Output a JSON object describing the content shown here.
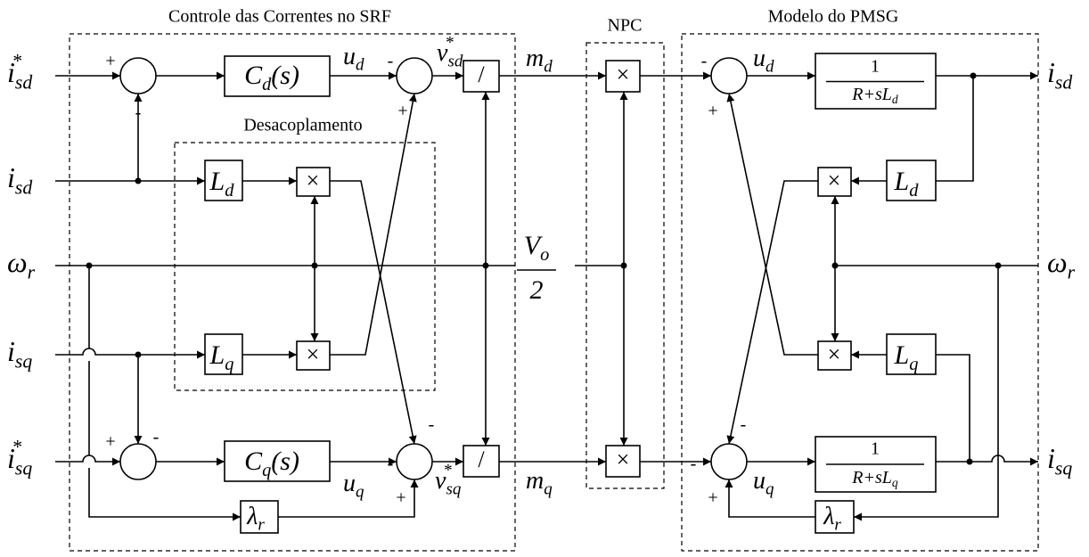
{
  "groups": {
    "control": "Controle das Correntes no SRF",
    "decoupling": "Desacoplamento",
    "npc": "NPC",
    "pmsg": "Modelo do PMSG"
  },
  "inputs": [
    {
      "base": "i",
      "sub": "sd",
      "sup": "*"
    },
    {
      "base": "i",
      "sub": "sd"
    },
    {
      "base": "ω",
      "sub": "r"
    },
    {
      "base": "i",
      "sub": "sq"
    },
    {
      "base": "i",
      "sub": "sq",
      "sup": "*"
    }
  ],
  "outputs": [
    {
      "base": "i",
      "sub": "sd"
    },
    {
      "base": "ω",
      "sub": "r"
    },
    {
      "base": "i",
      "sub": "sq"
    }
  ],
  "blocks": {
    "cd": {
      "base": "C",
      "sub": "d",
      "tail": "(s)"
    },
    "cq": {
      "base": "C",
      "sub": "q",
      "tail": "(s)"
    },
    "ld": {
      "base": "L",
      "sub": "d"
    },
    "lq": {
      "base": "L",
      "sub": "q"
    },
    "lambda": {
      "base": "λ",
      "sub": "r"
    },
    "plant_d": {
      "num": "1",
      "den": {
        "base": "R+sL",
        "sub": "d"
      }
    },
    "plant_q": {
      "num": "1",
      "den": {
        "base": "R+sL",
        "sub": "q"
      }
    },
    "multiply": "×",
    "divide": "/"
  },
  "signals": {
    "ud_left": {
      "base": "u",
      "sub": "d"
    },
    "vsd": {
      "base": "v",
      "sub": "sd",
      "sup": "*"
    },
    "md": {
      "base": "m",
      "sub": "d"
    },
    "ud_right": {
      "base": "u",
      "sub": "d"
    },
    "uq_left": {
      "base": "u",
      "sub": "q"
    },
    "vsq": {
      "base": "v",
      "sub": "sq",
      "sup": "*"
    },
    "mq": {
      "base": "m",
      "sub": "q"
    },
    "uq_right": {
      "base": "u",
      "sub": "q"
    },
    "vo2": {
      "num": {
        "base": "V",
        "sub": "o"
      },
      "den": "2"
    }
  },
  "signs": [
    "+",
    "-",
    "-",
    "+",
    "+",
    "-",
    "-",
    "-",
    "+",
    "-",
    "+",
    "-",
    "-",
    "+"
  ]
}
